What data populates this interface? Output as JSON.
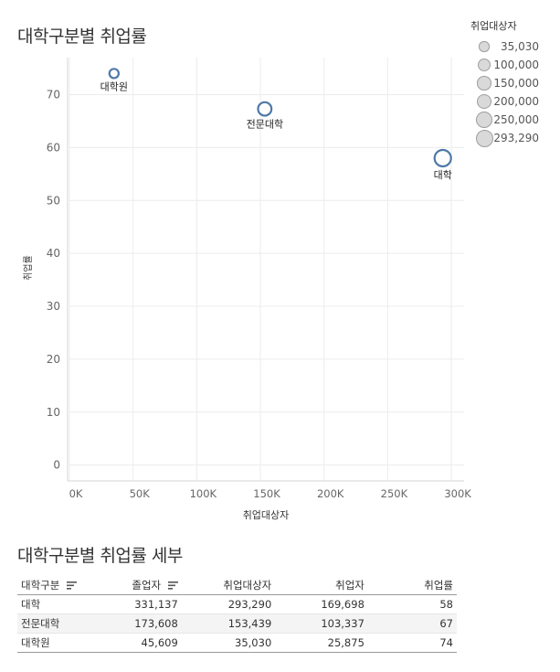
{
  "titles": {
    "chart": "대학구분별 취업률",
    "table": "대학구분별 취업률 세부"
  },
  "chart_data": {
    "type": "scatter",
    "title": "대학구분별 취업률",
    "xlabel": "취업대상자",
    "ylabel": "취업률",
    "xlim": [
      0,
      310000
    ],
    "ylim": [
      -3,
      77
    ],
    "x_ticks": [
      0,
      50000,
      100000,
      150000,
      200000,
      250000,
      300000
    ],
    "x_tick_labels": [
      "0K",
      "50K",
      "100K",
      "150K",
      "200K",
      "250K",
      "300K"
    ],
    "y_ticks": [
      0,
      10,
      20,
      30,
      40,
      50,
      60,
      70
    ],
    "y_tick_labels": [
      "0",
      "10",
      "20",
      "30",
      "40",
      "50",
      "60",
      "70"
    ],
    "grid": true,
    "size_field": "취업대상자",
    "points": [
      {
        "label": "대학원",
        "x": 35030,
        "y": 74,
        "label_pos": "below"
      },
      {
        "label": "전문대학",
        "x": 153439,
        "y": 67.3,
        "label_pos": "below"
      },
      {
        "label": "대학",
        "x": 293290,
        "y": 58,
        "label_pos": "below"
      }
    ],
    "marker_color": "#4e79a7",
    "legend": {
      "title": "취업대상자",
      "position": "top-right",
      "entries": [
        {
          "label": "35,030",
          "size": 35030
        },
        {
          "label": "100,000",
          "size": 100000
        },
        {
          "label": "150,000",
          "size": 150000
        },
        {
          "label": "200,000",
          "size": 200000
        },
        {
          "label": "250,000",
          "size": 250000
        },
        {
          "label": "293,290",
          "size": 293290
        }
      ]
    }
  },
  "table": {
    "columns": [
      "대학구분",
      "졸업자",
      "취업대상자",
      "취업자",
      "취업률"
    ],
    "rows": [
      [
        "대학",
        "331,137",
        "293,290",
        "169,698",
        "58"
      ],
      [
        "전문대학",
        "173,608",
        "153,439",
        "103,337",
        "67"
      ],
      [
        "대학원",
        "45,609",
        "35,030",
        "25,875",
        "74"
      ]
    ]
  }
}
